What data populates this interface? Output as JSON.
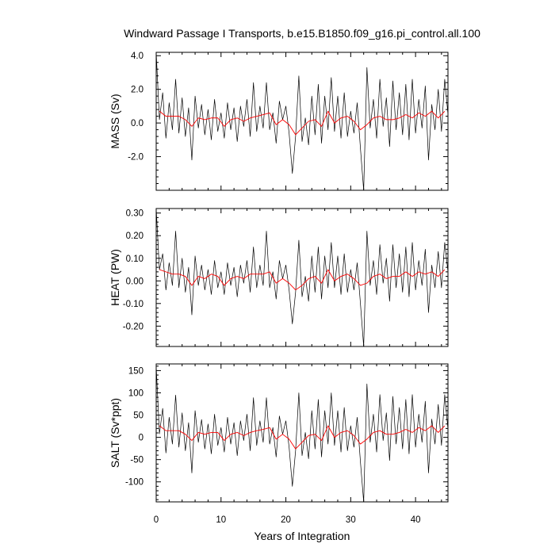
{
  "title": "Windward Passage I Transports, b.e15.B1850.f09_g16.pi_control.all.100",
  "xlabel": "Years of Integration",
  "colors": {
    "raw": "#000000",
    "smooth": "#ff0000",
    "frame": "#000000"
  },
  "chart_data": [
    {
      "type": "line",
      "ylabel": "MASS (Sv)",
      "xlim": [
        0,
        45
      ],
      "ylim": [
        -4.0,
        4.2
      ],
      "x_ticks": [
        0,
        10,
        20,
        30,
        40
      ],
      "x_tick_labels": [
        "0",
        "10",
        "20",
        "30",
        "40"
      ],
      "y_ticks": [
        4.0,
        2.0,
        0.0,
        -2.0
      ],
      "y_tick_labels": [
        "4.0",
        "2.0",
        "0.0",
        "-2.0"
      ],
      "series": [
        {
          "style": "monthly",
          "x": [
            0,
            0.5,
            1.0,
            1.5,
            2.0,
            2.5,
            3.0,
            3.5,
            4.0,
            4.5,
            5.0,
            5.5,
            6.0,
            6.5,
            7.0,
            7.5,
            8.0,
            8.5,
            9.0,
            9.5,
            10.0,
            10.5,
            11.0,
            11.5,
            12.0,
            12.5,
            13.0,
            13.5,
            14.0,
            14.5,
            15.0,
            15.5,
            16.0,
            16.5,
            17.0,
            17.5,
            18.0,
            18.5,
            19.0,
            19.5,
            20.0,
            20.5,
            21.0,
            21.5,
            22.0,
            22.5,
            23.0,
            23.5,
            24.0,
            24.5,
            25.0,
            25.5,
            26.0,
            26.5,
            27.0,
            27.5,
            28.0,
            28.5,
            29.0,
            29.5,
            30.0,
            30.5,
            31.0,
            31.5,
            32.0,
            32.5,
            33.0,
            33.5,
            34.0,
            34.5,
            35.0,
            35.5,
            36.0,
            36.5,
            37.0,
            37.5,
            38.0,
            38.5,
            39.0,
            39.5,
            40.0,
            40.5,
            41.0,
            41.5,
            42.0,
            42.5,
            43.0,
            43.5,
            44.0,
            44.5,
            45.0
          ],
          "values": [
            4.2,
            0.2,
            1.8,
            -0.9,
            1.2,
            -0.4,
            2.6,
            -0.6,
            1.5,
            -0.8,
            0.9,
            -2.2,
            1.6,
            -0.3,
            1.1,
            -0.7,
            0.8,
            -1.0,
            1.4,
            -0.5,
            0.6,
            -0.9,
            1.2,
            -0.4,
            0.9,
            -1.1,
            1.0,
            -0.2,
            1.4,
            -0.8,
            2.4,
            -0.5,
            1.0,
            -0.3,
            2.4,
            -0.4,
            0.6,
            -1.2,
            1.3,
            0.2,
            1.0,
            -0.6,
            -3.0,
            -0.8,
            2.8,
            -1.1,
            0.3,
            -1.3,
            1.6,
            -0.7,
            2.3,
            -1.2,
            1.6,
            -0.4,
            2.7,
            -0.5,
            1.6,
            -0.9,
            1.8,
            -0.8,
            0.7,
            -0.6,
            1.2,
            -1.5,
            -4.0,
            3.3,
            -0.3,
            1.4,
            -0.9,
            2.6,
            -0.2,
            1.5,
            -1.4,
            2.5,
            -0.4,
            1.8,
            -0.7,
            2.3,
            -1.0,
            2.6,
            -0.6,
            1.4,
            -0.3,
            2.2,
            -2.2,
            1.1,
            -0.4,
            2.0,
            -0.5,
            2.6,
            0.5
          ]
        },
        {
          "style": "annual-mean",
          "x": [
            0.5,
            1.5,
            2.5,
            3.5,
            4.5,
            5.5,
            6.5,
            7.5,
            8.5,
            9.5,
            10.5,
            11.5,
            12.5,
            13.5,
            14.5,
            15.5,
            16.5,
            17.5,
            18.5,
            19.5,
            20.5,
            21.5,
            22.5,
            23.5,
            24.5,
            25.5,
            26.5,
            27.5,
            28.5,
            29.5,
            30.5,
            31.5,
            32.5,
            33.5,
            34.5,
            35.5,
            36.5,
            37.5,
            38.5,
            39.5,
            40.5,
            41.5,
            42.5,
            43.5,
            44.5
          ],
          "values": [
            0.7,
            0.4,
            0.4,
            0.4,
            0.2,
            -0.2,
            0.3,
            0.2,
            0.3,
            0.3,
            -0.2,
            0.2,
            0.3,
            0.1,
            0.3,
            0.4,
            0.5,
            0.6,
            -0.1,
            0.2,
            -0.1,
            -0.7,
            -0.3,
            0.1,
            0.2,
            -0.2,
            0.7,
            0.0,
            0.3,
            0.4,
            0.1,
            -0.4,
            -0.1,
            0.3,
            0.4,
            0.2,
            0.2,
            0.3,
            0.5,
            0.3,
            0.6,
            0.4,
            0.7,
            0.3,
            0.7
          ]
        }
      ]
    },
    {
      "type": "line",
      "ylabel": "HEAT (PW)",
      "xlim": [
        0,
        45
      ],
      "ylim": [
        -0.29,
        0.32
      ],
      "x_ticks": [
        0,
        10,
        20,
        30,
        40
      ],
      "x_tick_labels": [
        "0",
        "10",
        "20",
        "30",
        "40"
      ],
      "y_ticks": [
        0.3,
        0.2,
        0.1,
        0.0,
        -0.1,
        -0.2
      ],
      "y_tick_labels": [
        "0.30",
        "0.20",
        "0.10",
        "0.00",
        "-0.10",
        "-0.20"
      ],
      "series": [
        {
          "style": "monthly",
          "x": [
            0,
            0.5,
            1.0,
            1.5,
            2.0,
            2.5,
            3.0,
            3.5,
            4.0,
            4.5,
            5.0,
            5.5,
            6.0,
            6.5,
            7.0,
            7.5,
            8.0,
            8.5,
            9.0,
            9.5,
            10.0,
            10.5,
            11.0,
            11.5,
            12.0,
            12.5,
            13.0,
            13.5,
            14.0,
            14.5,
            15.0,
            15.5,
            16.0,
            16.5,
            17.0,
            17.5,
            18.0,
            18.5,
            19.0,
            19.5,
            20.0,
            20.5,
            21.0,
            21.5,
            22.0,
            22.5,
            23.0,
            23.5,
            24.0,
            24.5,
            25.0,
            25.5,
            26.0,
            26.5,
            27.0,
            27.5,
            28.0,
            28.5,
            29.0,
            29.5,
            30.0,
            30.5,
            31.0,
            31.5,
            32.0,
            32.5,
            33.0,
            33.5,
            34.0,
            34.5,
            35.0,
            35.5,
            36.0,
            36.5,
            37.0,
            37.5,
            38.0,
            38.5,
            39.0,
            39.5,
            40.0,
            40.5,
            41.0,
            41.5,
            42.0,
            42.5,
            43.0,
            43.5,
            44.0,
            44.5,
            45.0
          ],
          "values": [
            0.32,
            0.05,
            0.12,
            -0.04,
            0.08,
            -0.02,
            0.22,
            -0.03,
            0.1,
            -0.05,
            0.06,
            -0.15,
            0.11,
            -0.02,
            0.07,
            -0.04,
            0.05,
            -0.06,
            0.09,
            -0.03,
            0.04,
            -0.06,
            0.08,
            -0.02,
            0.06,
            -0.07,
            0.07,
            -0.01,
            0.09,
            -0.05,
            0.15,
            -0.03,
            0.07,
            -0.02,
            0.22,
            -0.03,
            0.04,
            -0.08,
            0.09,
            0.01,
            0.07,
            -0.04,
            -0.19,
            -0.05,
            0.18,
            -0.07,
            0.02,
            -0.09,
            0.11,
            -0.05,
            0.15,
            -0.08,
            0.11,
            -0.03,
            0.17,
            -0.03,
            0.11,
            -0.06,
            0.12,
            -0.05,
            0.05,
            -0.04,
            0.08,
            -0.1,
            -0.29,
            0.22,
            -0.02,
            0.09,
            -0.06,
            0.16,
            -0.01,
            0.1,
            -0.09,
            0.16,
            -0.03,
            0.12,
            -0.05,
            0.15,
            -0.07,
            0.17,
            -0.04,
            0.09,
            -0.02,
            0.14,
            -0.14,
            0.07,
            -0.03,
            0.13,
            -0.03,
            0.17,
            0.04
          ]
        },
        {
          "style": "annual-mean",
          "x": [
            0.5,
            1.5,
            2.5,
            3.5,
            4.5,
            5.5,
            6.5,
            7.5,
            8.5,
            9.5,
            10.5,
            11.5,
            12.5,
            13.5,
            14.5,
            15.5,
            16.5,
            17.5,
            18.5,
            19.5,
            20.5,
            21.5,
            22.5,
            23.5,
            24.5,
            25.5,
            26.5,
            27.5,
            28.5,
            29.5,
            30.5,
            31.5,
            32.5,
            33.5,
            34.5,
            35.5,
            36.5,
            37.5,
            38.5,
            39.5,
            40.5,
            41.5,
            42.5,
            43.5,
            44.5
          ],
          "values": [
            0.05,
            0.04,
            0.03,
            0.03,
            0.02,
            -0.02,
            0.02,
            0.01,
            0.03,
            0.02,
            -0.02,
            0.01,
            0.02,
            0.01,
            0.03,
            0.03,
            0.03,
            0.04,
            -0.01,
            0.01,
            -0.01,
            -0.04,
            -0.02,
            0.01,
            0.02,
            -0.01,
            0.05,
            0.0,
            0.02,
            0.03,
            0.01,
            -0.02,
            -0.01,
            0.02,
            0.03,
            0.01,
            0.02,
            0.02,
            0.04,
            0.02,
            0.04,
            0.03,
            0.04,
            0.02,
            0.05
          ]
        }
      ]
    },
    {
      "type": "line",
      "ylabel": "SALT (Sv*ppt)",
      "xlim": [
        0,
        45
      ],
      "ylim": [
        -145,
        165
      ],
      "x_ticks": [
        0,
        10,
        20,
        30,
        40
      ],
      "x_tick_labels": [
        "0",
        "10",
        "20",
        "30",
        "40"
      ],
      "y_ticks": [
        150,
        100,
        50,
        0,
        -50,
        -100
      ],
      "y_tick_labels": [
        "150",
        "100",
        "50",
        "0",
        "-50",
        "-100"
      ],
      "series": [
        {
          "style": "monthly",
          "x": [
            0,
            0.5,
            1.0,
            1.5,
            2.0,
            2.5,
            3.0,
            3.5,
            4.0,
            4.5,
            5.0,
            5.5,
            6.0,
            6.5,
            7.0,
            7.5,
            8.0,
            8.5,
            9.0,
            9.5,
            10.0,
            10.5,
            11.0,
            11.5,
            12.0,
            12.5,
            13.0,
            13.5,
            14.0,
            14.5,
            15.0,
            15.5,
            16.0,
            16.5,
            17.0,
            17.5,
            18.0,
            18.5,
            19.0,
            19.5,
            20.0,
            20.5,
            21.0,
            21.5,
            22.0,
            22.5,
            23.0,
            23.5,
            24.0,
            24.5,
            25.0,
            25.5,
            26.0,
            26.5,
            27.0,
            27.5,
            28.0,
            28.5,
            29.0,
            29.5,
            30.0,
            30.5,
            31.0,
            31.5,
            32.0,
            32.5,
            33.0,
            33.5,
            34.0,
            34.5,
            35.0,
            35.5,
            36.0,
            36.5,
            37.0,
            37.5,
            38.0,
            38.5,
            39.0,
            39.5,
            40.0,
            40.5,
            41.0,
            41.5,
            42.0,
            42.5,
            43.0,
            43.5,
            44.0,
            44.5,
            45.0
          ],
          "values": [
            160,
            8,
            65,
            -35,
            45,
            -15,
            95,
            -22,
            55,
            -30,
            33,
            -80,
            60,
            -11,
            40,
            -26,
            30,
            -37,
            52,
            -18,
            22,
            -33,
            45,
            -15,
            33,
            -41,
            37,
            -7,
            52,
            -30,
            89,
            -18,
            37,
            -11,
            89,
            -15,
            22,
            -44,
            48,
            7,
            37,
            -22,
            -110,
            -30,
            100,
            -41,
            11,
            -48,
            60,
            -26,
            85,
            -44,
            60,
            -15,
            100,
            -18,
            60,
            -33,
            67,
            -30,
            26,
            -22,
            45,
            -55,
            -145,
            120,
            -11,
            52,
            -33,
            96,
            -7,
            55,
            -52,
            92,
            -15,
            67,
            -26,
            85,
            -37,
            96,
            -22,
            52,
            -11,
            81,
            -80,
            41,
            -15,
            74,
            -18,
            96,
            18
          ]
        },
        {
          "style": "annual-mean",
          "x": [
            0.5,
            1.5,
            2.5,
            3.5,
            4.5,
            5.5,
            6.5,
            7.5,
            8.5,
            9.5,
            10.5,
            11.5,
            12.5,
            13.5,
            14.5,
            15.5,
            16.5,
            17.5,
            18.5,
            19.5,
            20.5,
            21.5,
            22.5,
            23.5,
            24.5,
            25.5,
            26.5,
            27.5,
            28.5,
            29.5,
            30.5,
            31.5,
            32.5,
            33.5,
            34.5,
            35.5,
            36.5,
            37.5,
            38.5,
            39.5,
            40.5,
            41.5,
            42.5,
            43.5,
            44.5
          ],
          "values": [
            26,
            15,
            15,
            15,
            7,
            -7,
            11,
            7,
            11,
            11,
            -7,
            7,
            11,
            4,
            11,
            15,
            18,
            22,
            -4,
            7,
            -4,
            -26,
            -11,
            4,
            7,
            -7,
            26,
            0,
            11,
            15,
            4,
            -15,
            -4,
            11,
            15,
            7,
            7,
            11,
            18,
            11,
            22,
            15,
            26,
            11,
            26
          ]
        }
      ]
    }
  ]
}
